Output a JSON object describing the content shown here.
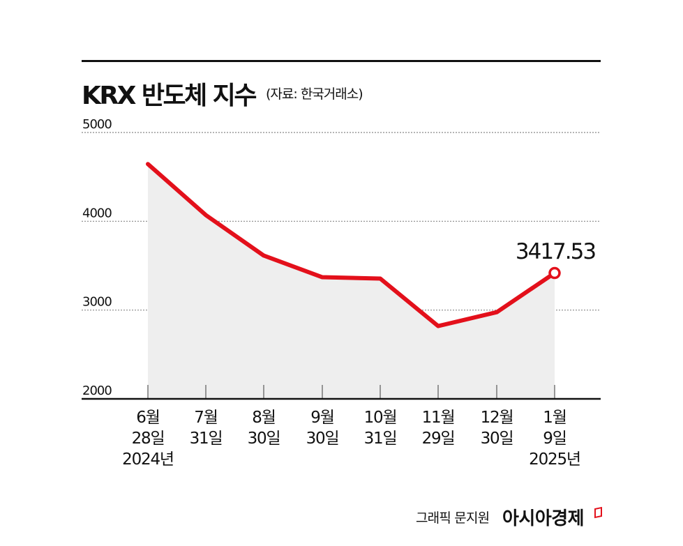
{
  "header": {
    "title": "KRX 반도체 지수",
    "source": "(자료: 한국거래소)"
  },
  "footer": {
    "credit": "그래픽 문지원",
    "brand": "아시아경제"
  },
  "colors": {
    "line": "#e3101b",
    "area": "#eeeeee",
    "grid": "#888888",
    "axis": "#111111"
  },
  "end_label": "3417.53",
  "y_ticks": [
    "5000",
    "4000",
    "3000",
    "2000"
  ],
  "x_labels": [
    {
      "l1": "6월",
      "l2": "28일",
      "l3": "2024년"
    },
    {
      "l1": "7월",
      "l2": "31일",
      "l3": ""
    },
    {
      "l1": "8월",
      "l2": "30일",
      "l3": ""
    },
    {
      "l1": "9월",
      "l2": "30일",
      "l3": ""
    },
    {
      "l1": "10월",
      "l2": "31일",
      "l3": ""
    },
    {
      "l1": "11월",
      "l2": "29일",
      "l3": ""
    },
    {
      "l1": "12월",
      "l2": "30일",
      "l3": ""
    },
    {
      "l1": "1월",
      "l2": "9일",
      "l3": "2025년"
    }
  ],
  "chart_data": {
    "type": "line",
    "title": "KRX 반도체 지수",
    "subtitle": "(자료: 한국거래소)",
    "categories": [
      "2024-06-28",
      "2024-07-31",
      "2024-08-30",
      "2024-09-30",
      "2024-10-31",
      "2024-11-29",
      "2024-12-30",
      "2025-01-09"
    ],
    "category_labels": [
      "6월 28일 2024년",
      "7월 31일",
      "8월 30일",
      "9월 30일",
      "10월 31일",
      "11월 29일",
      "12월 30일",
      "1월 9일 2025년"
    ],
    "series": [
      {
        "name": "KRX 반도체 지수",
        "values": [
          4645,
          4070,
          3614,
          3370,
          3355,
          2820,
          2976,
          3417.53
        ]
      }
    ],
    "annotations": [
      {
        "x": "2025-01-09",
        "y": 3417.53,
        "text": "3417.53"
      }
    ],
    "xlabel": "",
    "ylabel": "",
    "ylim": [
      2000,
      5000
    ],
    "yticks": [
      2000,
      3000,
      4000,
      5000
    ],
    "grid": true,
    "legend": "none",
    "area_fill": true
  }
}
